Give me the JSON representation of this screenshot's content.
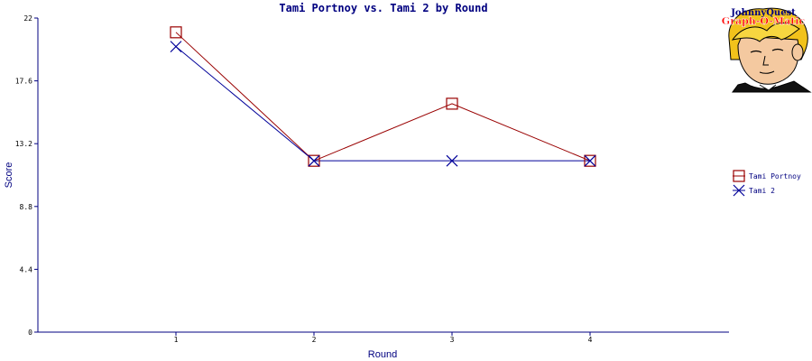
{
  "chart_data": {
    "type": "line",
    "title": "Tami Portnoy  vs. Tami 2 by Round",
    "xlabel": "Round",
    "ylabel": "Score",
    "categories": [
      "1",
      "2",
      "3",
      "4"
    ],
    "y_ticks": [
      "0",
      "4.4",
      "8.8",
      "13.2",
      "17.6",
      "22"
    ],
    "ylim": [
      0,
      22
    ],
    "grid": false,
    "legend_position": "right",
    "series": [
      {
        "name": "Tami Portnoy",
        "values": [
          21,
          12,
          16,
          12
        ],
        "color": "#990000",
        "marker": "square"
      },
      {
        "name": "Tami 2",
        "values": [
          20,
          12,
          12,
          12
        ],
        "color": "#000099",
        "marker": "x"
      }
    ]
  },
  "logo": {
    "line1": "JohnnyQuest",
    "line2": "Graph-O-Matic"
  }
}
